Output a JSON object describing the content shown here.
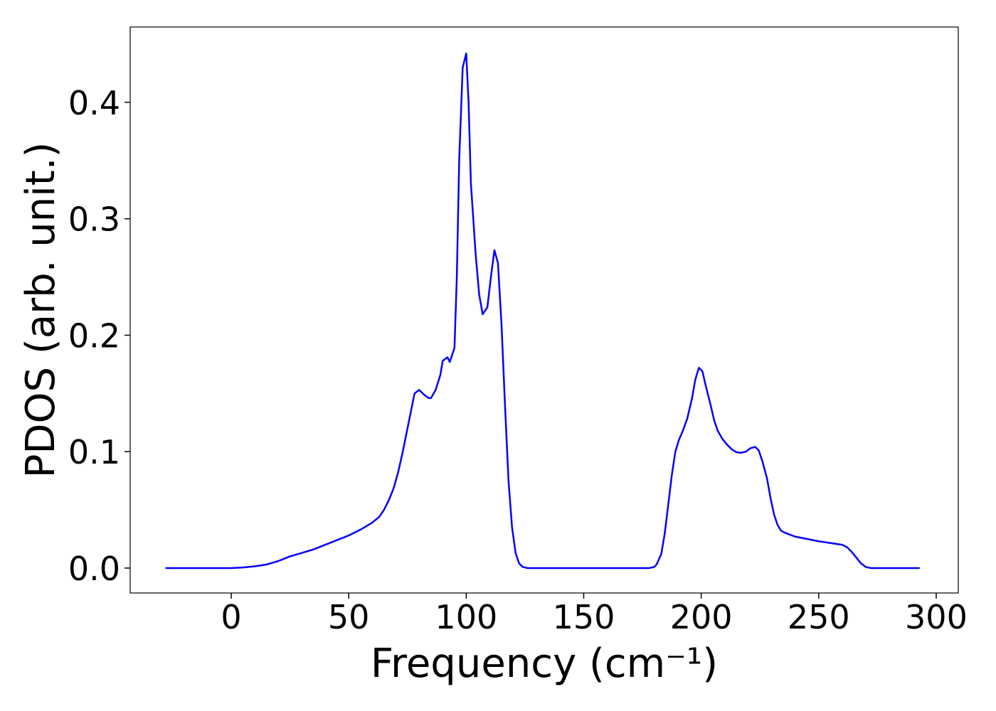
{
  "chart_data": {
    "type": "line",
    "x_label": "Frequency (cm⁻¹)",
    "y_label": "PDOS (arb. unit.)",
    "xlim": [
      -43,
      309.4
    ],
    "ylim": [
      -0.0214,
      0.4647
    ],
    "xticks": [
      0,
      50,
      100,
      150,
      200,
      250,
      300
    ],
    "yticks": [
      {
        "value": 0,
        "label": "0.0"
      },
      {
        "value": 0.1,
        "label": "0.1"
      },
      {
        "value": 0.2,
        "label": "0.2"
      },
      {
        "value": 0.3,
        "label": "0.3"
      },
      {
        "value": 0.4,
        "label": "0.4"
      }
    ],
    "grid": false,
    "series": [
      {
        "color": "#0000ff",
        "x": [
          -28,
          -20,
          -10,
          0,
          5,
          10,
          15,
          20,
          25,
          30,
          35,
          40,
          45,
          50,
          55,
          60,
          63,
          65,
          67,
          69,
          71,
          73,
          75,
          77,
          78,
          80,
          82,
          84,
          85,
          87,
          89,
          90,
          92,
          93,
          95,
          96,
          97,
          98.5,
          100,
          101,
          102,
          104,
          105.5,
          107,
          109,
          110.5,
          112,
          113.5,
          115,
          116.5,
          118,
          119.5,
          121,
          122.5,
          124,
          126,
          150,
          178,
          180,
          181,
          183,
          184.5,
          186,
          187.5,
          189,
          190.5,
          192,
          194,
          196,
          197.5,
          199,
          200.5,
          202,
          204,
          205.5,
          207,
          209,
          211,
          213,
          215,
          217,
          219,
          221,
          223,
          224.5,
          226,
          228,
          229.5,
          231,
          232.5,
          234,
          236,
          240,
          245,
          250,
          255,
          260,
          262,
          264,
          266,
          268,
          270,
          272,
          293
        ],
        "values": [
          0,
          0,
          0,
          0,
          0.0005,
          0.0015,
          0.003,
          0.006,
          0.01,
          0.013,
          0.016,
          0.02,
          0.024,
          0.028,
          0.033,
          0.039,
          0.044,
          0.05,
          0.058,
          0.068,
          0.082,
          0.1,
          0.12,
          0.14,
          0.15,
          0.153,
          0.149,
          0.146,
          0.146,
          0.153,
          0.166,
          0.178,
          0.181,
          0.177,
          0.189,
          0.25,
          0.35,
          0.43,
          0.442,
          0.4,
          0.33,
          0.27,
          0.235,
          0.218,
          0.224,
          0.25,
          0.273,
          0.262,
          0.21,
          0.14,
          0.075,
          0.035,
          0.013,
          0.004,
          0.001,
          0,
          0,
          0,
          0.001,
          0.003,
          0.012,
          0.03,
          0.055,
          0.08,
          0.1,
          0.11,
          0.117,
          0.128,
          0.145,
          0.162,
          0.172,
          0.169,
          0.156,
          0.14,
          0.127,
          0.118,
          0.111,
          0.106,
          0.102,
          0.0995,
          0.099,
          0.1,
          0.103,
          0.104,
          0.101,
          0.092,
          0.077,
          0.06,
          0.046,
          0.037,
          0.032,
          0.03,
          0.027,
          0.025,
          0.023,
          0.0215,
          0.02,
          0.018,
          0.014,
          0.009,
          0.004,
          0.001,
          0,
          0
        ]
      }
    ]
  }
}
